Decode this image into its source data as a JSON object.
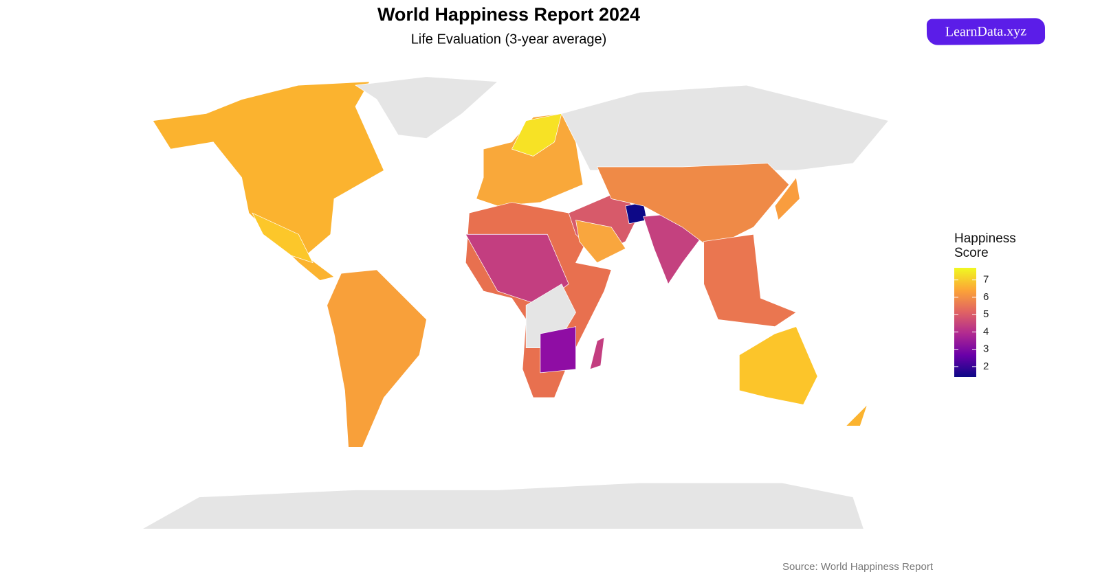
{
  "chart_data": {
    "type": "choropleth",
    "title": "World Happiness Report 2024",
    "subtitle": "Life Evaluation (3-year average)",
    "legend_title": "Happiness Score",
    "colors": [
      "#0d0887",
      "#6a00a8",
      "#b12a90",
      "#e16462",
      "#fca636",
      "#f0f921"
    ],
    "clim": [
      1.4,
      7.7
    ],
    "cticks": [
      2,
      3,
      4,
      5,
      6,
      7
    ],
    "source": "Source: World Happiness Report",
    "logo": "LearnData.xyz"
  }
}
